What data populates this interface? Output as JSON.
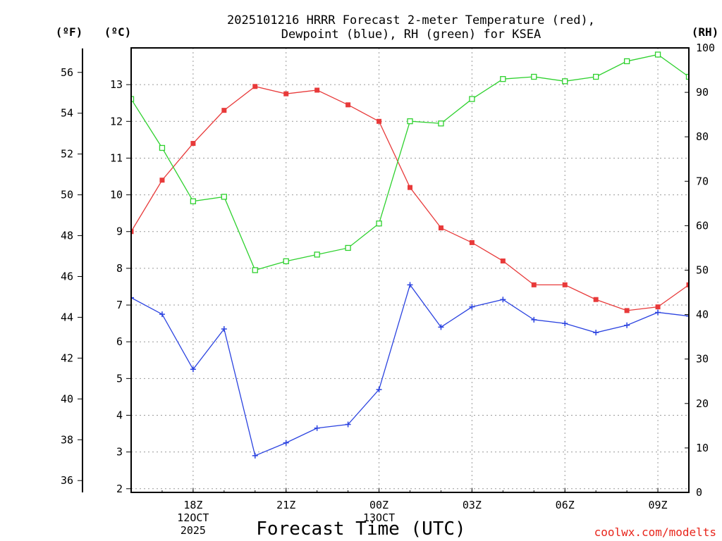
{
  "chart_data": {
    "type": "line",
    "title_lines": [
      "2025101216 HRRR Forecast 2-meter Temperature (red),",
      "Dewpoint (blue), RH (green) for KSEA"
    ],
    "xlabel": "Forecast Time (UTC)",
    "credit": "coolwx.com/modelts",
    "axis_units": {
      "fahrenheit": "(ºF)",
      "celsius": "(ºC)",
      "rh": "(RH)"
    },
    "x_hours": [
      16,
      17,
      18,
      19,
      20,
      21,
      22,
      23,
      24,
      25,
      26,
      27,
      28,
      29,
      30,
      31,
      32,
      33,
      34
    ],
    "xlim": [
      16,
      34
    ],
    "x_ticks": [
      {
        "hour": 18,
        "lines": [
          "18Z",
          "12OCT",
          "2025"
        ]
      },
      {
        "hour": 21,
        "lines": [
          "21Z"
        ]
      },
      {
        "hour": 24,
        "lines": [
          "00Z",
          "13OCT"
        ]
      },
      {
        "hour": 27,
        "lines": [
          "03Z"
        ]
      },
      {
        "hour": 30,
        "lines": [
          "06Z"
        ]
      },
      {
        "hour": 33,
        "lines": [
          "09Z"
        ]
      }
    ],
    "celsius_axis": {
      "ylim": [
        1.9,
        14.0
      ],
      "ticks": [
        2,
        3,
        4,
        5,
        6,
        7,
        8,
        9,
        10,
        11,
        12,
        13
      ]
    },
    "fahrenheit_ticks": [
      36,
      38,
      40,
      42,
      44,
      46,
      48,
      50,
      52,
      54,
      56
    ],
    "rh_axis": {
      "ylim": [
        0,
        100
      ],
      "ticks": [
        0,
        10,
        20,
        30,
        40,
        50,
        60,
        70,
        80,
        90,
        100
      ]
    },
    "series": [
      {
        "name": "Temperature",
        "units": "C",
        "color": "#e83a3a",
        "marker": "filled-square",
        "values": [
          9.0,
          10.4,
          11.4,
          12.3,
          12.95,
          12.75,
          12.85,
          12.45,
          12.0,
          10.2,
          9.1,
          8.7,
          8.2,
          7.55,
          7.55,
          7.15,
          6.85,
          6.95,
          7.55
        ]
      },
      {
        "name": "Dewpoint",
        "units": "C",
        "color": "#2b43e0",
        "marker": "plus",
        "values": [
          7.2,
          6.75,
          5.25,
          6.35,
          2.9,
          3.25,
          3.65,
          3.75,
          4.7,
          7.55,
          6.4,
          6.95,
          7.15,
          6.6,
          6.5,
          6.25,
          6.45,
          6.8,
          6.7
        ]
      },
      {
        "name": "RH",
        "units": "%",
        "color": "#2ed12e",
        "marker": "open-square",
        "values": [
          88.5,
          77.5,
          65.5,
          66.5,
          50.0,
          52.0,
          53.5,
          55.0,
          60.5,
          83.5,
          83.0,
          88.5,
          93.0,
          93.5,
          92.5,
          93.5,
          97.0,
          98.5,
          93.5
        ]
      }
    ]
  }
}
